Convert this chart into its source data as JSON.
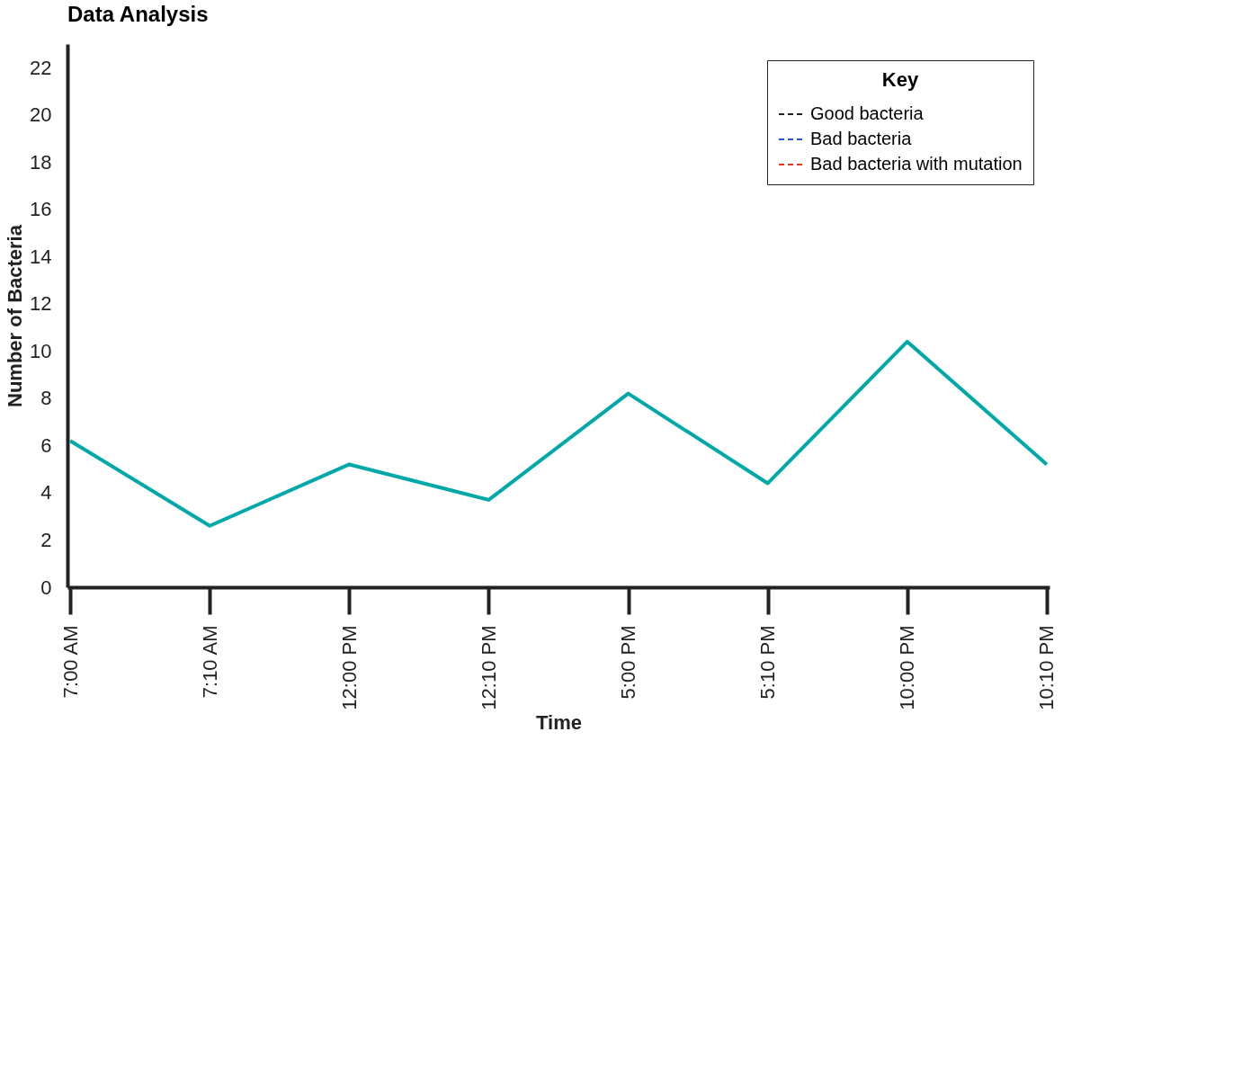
{
  "chart_data": {
    "type": "line",
    "title": "Data Analysis",
    "xlabel": "Time",
    "ylabel": "Number of Bacteria",
    "legend_title": "Key",
    "categories": [
      "7:00 AM",
      "7:10 AM",
      "12:00 PM",
      "12:10 PM",
      "5:00 PM",
      "5:10 PM",
      "10:00 PM",
      "10:10 PM"
    ],
    "series": [
      {
        "color": "#00a8a8",
        "line_style": "solid",
        "values": [
          6.2,
          2.6,
          5.2,
          3.7,
          8.2,
          4.4,
          10.4,
          5.2
        ]
      },
      {
        "name": "Good bacteria",
        "color": "#222222",
        "line_style": "dashed",
        "values": [
          null,
          null,
          null,
          null,
          null,
          null,
          null,
          null
        ]
      },
      {
        "name": "Bad bacteria",
        "color": "#2255cc",
        "line_style": "dashed",
        "values": [
          null,
          null,
          null,
          null,
          null,
          null,
          null,
          null
        ]
      },
      {
        "name": "Bad bacteria with mutation",
        "color": "#ee3322",
        "line_style": "dashed",
        "values": [
          null,
          null,
          null,
          null,
          null,
          null,
          null,
          null
        ]
      }
    ],
    "ylim": [
      0,
      23
    ],
    "yticks": [
      0,
      2,
      4,
      6,
      8,
      10,
      12,
      14,
      16,
      18,
      20,
      22
    ],
    "grid": false,
    "legend": "top right",
    "marker": "none"
  }
}
